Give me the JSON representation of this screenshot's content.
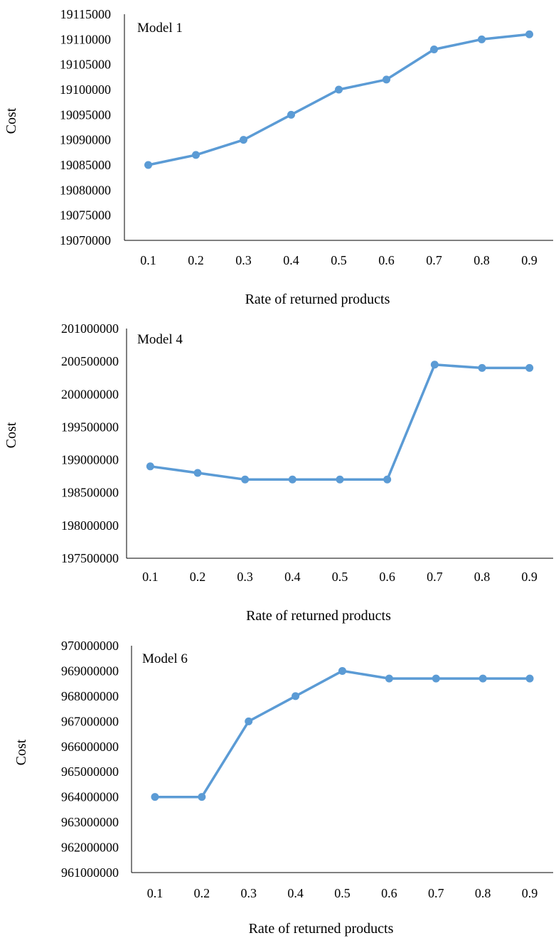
{
  "chart_data": [
    {
      "type": "line",
      "title": "Model 1",
      "xlabel": "Rate of returned products",
      "ylabel": "Cost",
      "categories": [
        "0.1",
        "0.2",
        "0.3",
        "0.4",
        "0.5",
        "0.6",
        "0.7",
        "0.8",
        "0.9"
      ],
      "series": [
        {
          "values": [
            19085000,
            19087000,
            19090000,
            19095000,
            19100000,
            19102000,
            19108000,
            19110000,
            19111000
          ]
        }
      ],
      "ylim": [
        19070000,
        19115000
      ],
      "yticks": [
        "19070000",
        "19075000",
        "19080000",
        "19085000",
        "19090000",
        "19095000",
        "19100000",
        "19105000",
        "19110000",
        "19115000"
      ],
      "grid": false,
      "legend": "none"
    },
    {
      "type": "line",
      "title": "Model 4",
      "xlabel": "Rate of returned products",
      "ylabel": "Cost",
      "categories": [
        "0.1",
        "0.2",
        "0.3",
        "0.4",
        "0.5",
        "0.6",
        "0.7",
        "0.8",
        "0.9"
      ],
      "series": [
        {
          "values": [
            198900000,
            198800000,
            198700000,
            198700000,
            198700000,
            198700000,
            200450000,
            200400000,
            200400000
          ]
        }
      ],
      "ylim": [
        197500000,
        201000000
      ],
      "yticks": [
        "197500000",
        "198000000",
        "198500000",
        "199000000",
        "199500000",
        "200000000",
        "200500000",
        "201000000"
      ],
      "grid": false,
      "legend": "none"
    },
    {
      "type": "line",
      "title": "Model 6",
      "xlabel": "Rate of returned products",
      "ylabel": "Cost",
      "categories": [
        "0.1",
        "0.2",
        "0.3",
        "0.4",
        "0.5",
        "0.6",
        "0.7",
        "0.8",
        "0.9"
      ],
      "series": [
        {
          "values": [
            964000000,
            964000000,
            967000000,
            968000000,
            969000000,
            968700000,
            968700000,
            968700000,
            968700000
          ]
        }
      ],
      "ylim": [
        961000000,
        970000000
      ],
      "yticks": [
        "961000000",
        "962000000",
        "963000000",
        "964000000",
        "965000000",
        "966000000",
        "967000000",
        "968000000",
        "969000000",
        "970000000"
      ],
      "grid": false,
      "legend": "none"
    }
  ],
  "colors": {
    "series": "#5b9bd5",
    "axis": "#000000"
  }
}
